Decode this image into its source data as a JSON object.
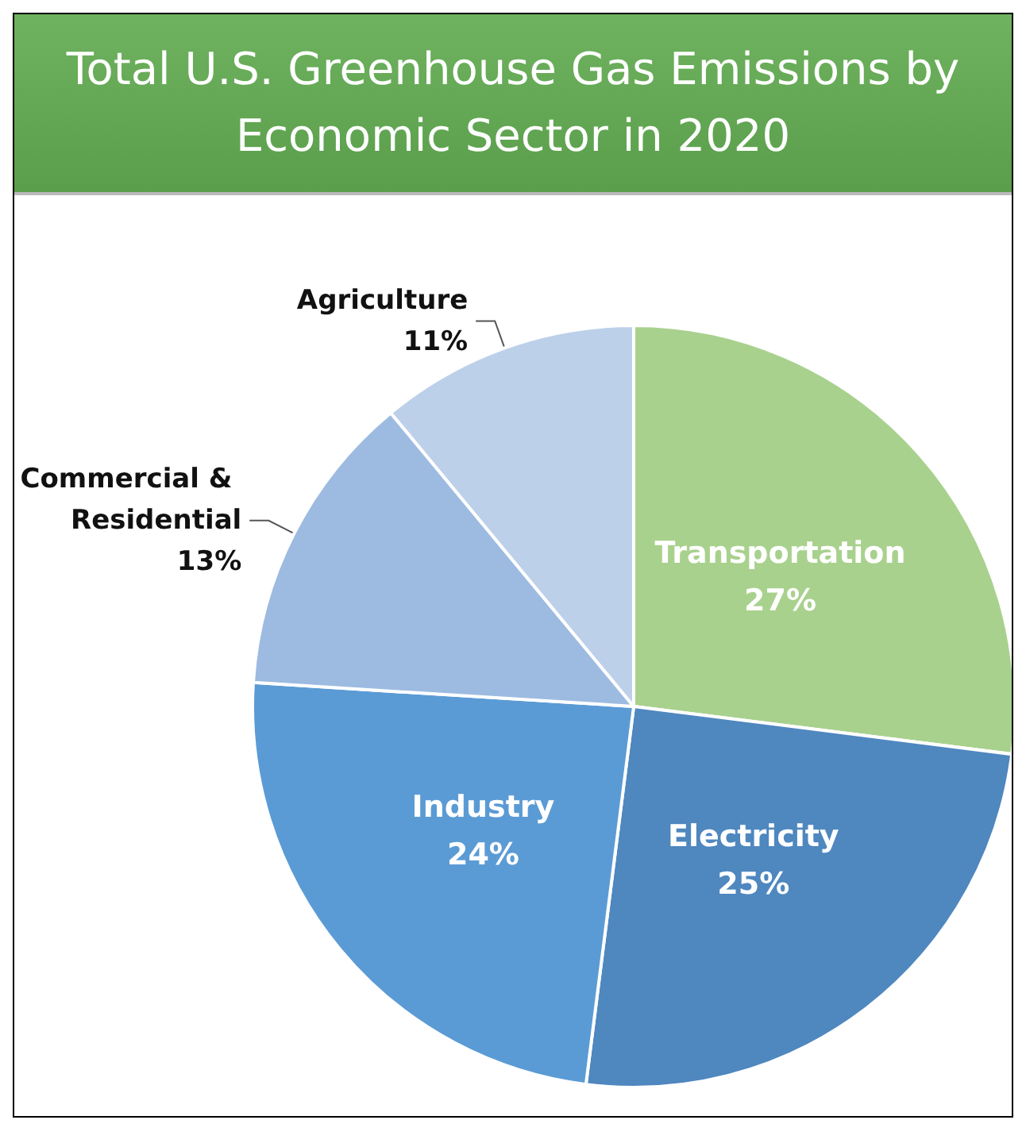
{
  "chart_data": {
    "type": "pie",
    "title": "Total U.S. Greenhouse Gas Emissions by Economic Sector in 2020",
    "categories": [
      "Transportation",
      "Electricity",
      "Industry",
      "Commercial & Residential",
      "Agriculture"
    ],
    "values": [
      27,
      25,
      24,
      13,
      11
    ],
    "colors": [
      "#a9d18e",
      "#4f87bf",
      "#5b9bd5",
      "#9dbbe1",
      "#bdd0ea"
    ],
    "value_labels": [
      "27%",
      "25%",
      "24%",
      "13%",
      "11%"
    ],
    "legend": false
  }
}
